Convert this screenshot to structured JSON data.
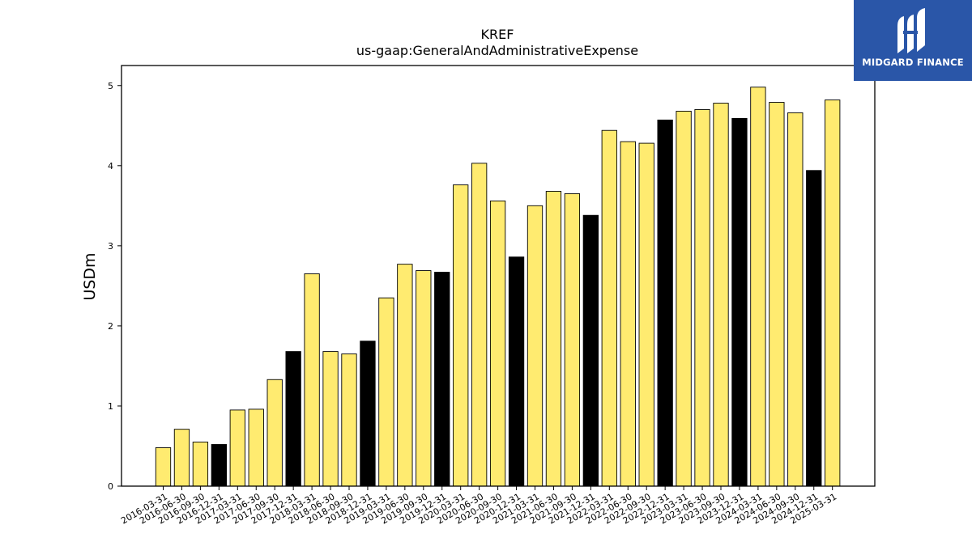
{
  "chart_data": {
    "type": "bar",
    "title": "KREF",
    "subtitle": "us-gaap:GeneralAndAdministrativeExpense",
    "ylabel": "USDm",
    "xlabel": "",
    "ylim": [
      0,
      5.25
    ],
    "yticks": [
      0,
      1,
      2,
      3,
      4,
      5
    ],
    "grid": false,
    "legend": "none",
    "categories": [
      "2016-03-31",
      "2016-06-30",
      "2016-09-30",
      "2016-12-31",
      "2017-03-31",
      "2017-06-30",
      "2017-09-30",
      "2017-12-31",
      "2018-03-31",
      "2018-06-30",
      "2018-09-30",
      "2018-12-31",
      "2019-03-31",
      "2019-06-30",
      "2019-09-30",
      "2019-12-31",
      "2020-03-31",
      "2020-06-30",
      "2020-09-30",
      "2020-12-31",
      "2021-03-31",
      "2021-06-30",
      "2021-09-30",
      "2021-12-31",
      "2022-03-31",
      "2022-06-30",
      "2022-09-30",
      "2022-12-31",
      "2023-03-31",
      "2023-06-30",
      "2023-09-30",
      "2023-12-31",
      "2024-03-31",
      "2024-06-30",
      "2024-09-30",
      "2024-12-31",
      "2025-03-31"
    ],
    "values": [
      0.48,
      0.71,
      0.55,
      0.52,
      0.95,
      0.96,
      1.33,
      1.68,
      2.65,
      1.68,
      1.65,
      1.81,
      2.35,
      2.77,
      2.69,
      2.67,
      3.76,
      4.03,
      3.56,
      2.86,
      3.5,
      3.68,
      3.65,
      3.38,
      4.44,
      4.3,
      4.28,
      4.57,
      4.68,
      4.7,
      4.78,
      4.59,
      4.98,
      4.79,
      4.66,
      3.94,
      4.82
    ],
    "fiscal_year_end": [
      false,
      false,
      false,
      true,
      false,
      false,
      false,
      true,
      false,
      false,
      false,
      true,
      false,
      false,
      false,
      true,
      false,
      false,
      false,
      true,
      false,
      false,
      false,
      true,
      false,
      false,
      false,
      true,
      false,
      false,
      false,
      true,
      false,
      false,
      false,
      true,
      false
    ],
    "colors": {
      "quarter": "#ffeb70",
      "year_end": "#000000",
      "edge": "#000000"
    }
  },
  "logo": {
    "text": "MIDGARD FINANCE",
    "color": "#2a56a8"
  }
}
